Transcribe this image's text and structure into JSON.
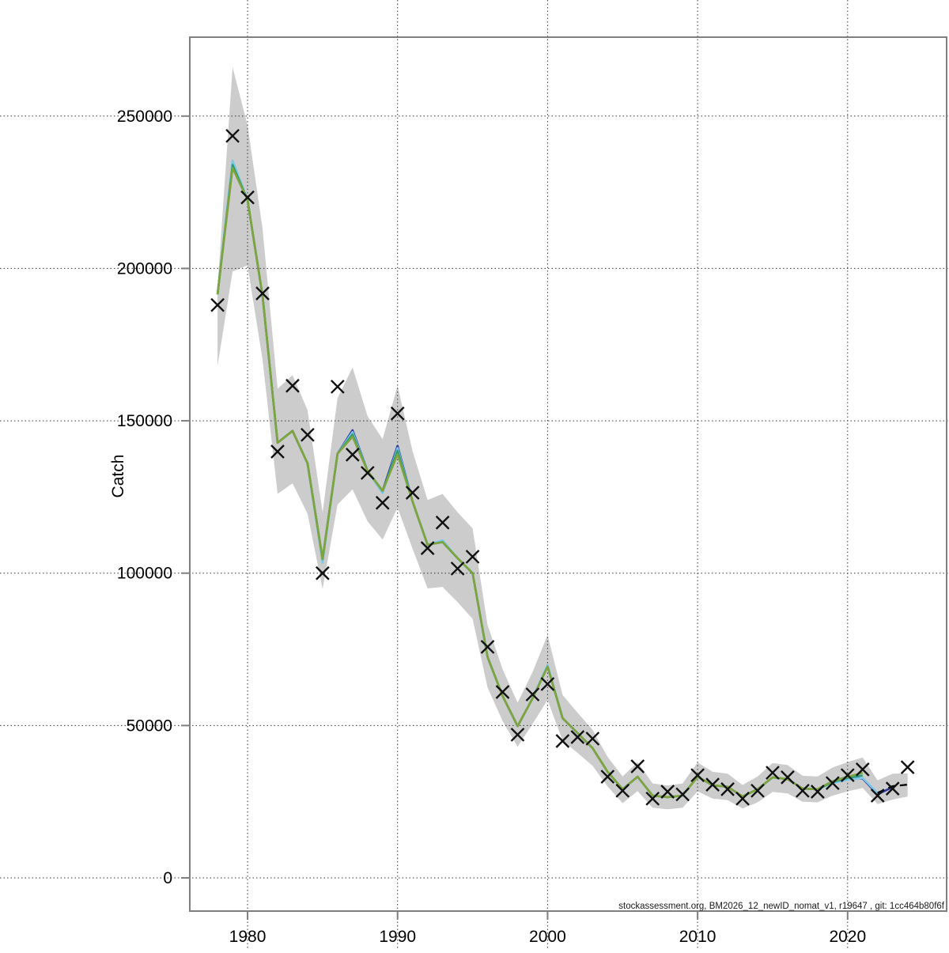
{
  "footer_note": "stockassessment.org, BM2026_12_newID_nomat_v1, r19647 , git: 1cc464b80f6f",
  "colors": {
    "background": "#ffffff",
    "plot_frame": "#7f7f7f",
    "gridline": "#333333",
    "band": "#cccccc",
    "run_green": "#7ea43b",
    "run_teal": "#2e9c74",
    "run_skyblue": "#7cc7e9",
    "run_navy": "#2d359b",
    "run_dashed": "#000000",
    "marks": "#111111",
    "text": "#000000"
  },
  "chart_data": {
    "type": "line",
    "title": "",
    "xlabel": "",
    "ylabel": "Catch",
    "legend": "none",
    "grid": "dotted, extends beyond plot box",
    "xlim": [
      1976.15,
      2026.6
    ],
    "ylim": [
      -10900,
      275900
    ],
    "x_tick_values": [
      1980,
      1990,
      2000,
      2010,
      2020
    ],
    "x_tick_labels": [
      "1980",
      "1990",
      "2000",
      "2010",
      "2020"
    ],
    "y_tick_values": [
      0,
      50000,
      100000,
      150000,
      200000,
      250000
    ],
    "y_tick_labels": [
      "0",
      "50000",
      "100000",
      "150000",
      "200000",
      "250000"
    ],
    "years_range": {
      "from": 1978,
      "to": 2024
    },
    "series": [
      {
        "name": "confidence-band",
        "type": "band",
        "color": "#cccccc",
        "year_start": 1978,
        "lo": [
          168000,
          199000,
          201000,
          170000,
          126000,
          129500,
          119500,
          94800,
          122500,
          127500,
          117000,
          111000,
          121500,
          108000,
          95000,
          95500,
          90500,
          85000,
          62500,
          51500,
          43000,
          50500,
          58400,
          45000,
          41000,
          36800,
          30000,
          24500,
          28500,
          23000,
          22500,
          23000,
          28400,
          26000,
          25500,
          22800,
          24800,
          28200,
          27700,
          25000,
          24800,
          27000,
          28400,
          29500,
          24200,
          25700,
          26700
        ],
        "hi": [
          194000,
          266000,
          247000,
          213000,
          160500,
          165000,
          153500,
          119900,
          157500,
          167500,
          151500,
          144000,
          161500,
          140000,
          124000,
          126000,
          120000,
          114700,
          83000,
          68500,
          57500,
          67500,
          79700,
          60000,
          54200,
          48600,
          39700,
          33300,
          38000,
          31000,
          30300,
          31000,
          37900,
          34800,
          34200,
          30500,
          33300,
          37700,
          37000,
          33500,
          33300,
          36200,
          38000,
          39500,
          32000,
          34200,
          34300
        ]
      },
      {
        "name": "run-fit-to-2023-navy",
        "type": "line",
        "style": "solid",
        "color": "#2d359b",
        "year_start": 1978,
        "values": [
          191500,
          234700,
          222500,
          191000,
          142800,
          146700,
          136000,
          104600,
          139200,
          146900,
          133500,
          127000,
          141800,
          123500,
          109300,
          110200,
          104900,
          100000,
          72500,
          59700,
          49800,
          58900,
          69600,
          52400,
          47500,
          42600,
          34800,
          29100,
          33200,
          27000,
          26500,
          27000,
          33200,
          30400,
          29900,
          26700,
          29100,
          33000,
          32400,
          29300,
          29100,
          31700,
          33200,
          32600,
          27400,
          29800
        ]
      },
      {
        "name": "run-fit-to-2022-skyblue",
        "type": "line",
        "style": "solid",
        "color": "#7cc7e9",
        "year_start": 1978,
        "values": [
          191500,
          235400,
          222500,
          191000,
          142800,
          146700,
          136000,
          103400,
          139200,
          146300,
          133500,
          126300,
          141100,
          123500,
          109300,
          110800,
          104900,
          100000,
          72500,
          59700,
          49800,
          58900,
          69900,
          52400,
          47500,
          42600,
          34800,
          29100,
          33200,
          27000,
          26500,
          27000,
          33200,
          30400,
          29900,
          26700,
          29100,
          33000,
          32400,
          29300,
          29100,
          31100,
          32200,
          32800,
          27800
        ]
      },
      {
        "name": "run-fit-to-2021-teal",
        "type": "line",
        "style": "solid",
        "color": "#2e9c74",
        "year_start": 1978,
        "values": [
          191500,
          234000,
          222500,
          191000,
          142800,
          146700,
          136000,
          104600,
          139200,
          145500,
          133500,
          127000,
          140200,
          123500,
          109300,
          110200,
          104900,
          100000,
          72500,
          59700,
          49800,
          58900,
          69300,
          52400,
          47500,
          42600,
          34800,
          29100,
          33200,
          27000,
          26500,
          27000,
          33200,
          30400,
          29900,
          26700,
          29100,
          33000,
          32400,
          29300,
          29100,
          31400,
          32800,
          33600
        ]
      },
      {
        "name": "run-fit-to-2021-green",
        "type": "line",
        "style": "solid",
        "color": "#7ea43b",
        "year_start": 1978,
        "values": [
          191500,
          233000,
          222500,
          191000,
          142800,
          146700,
          136000,
          104600,
          139200,
          144800,
          133500,
          127000,
          139000,
          123500,
          109300,
          110200,
          104900,
          100000,
          72500,
          59700,
          49800,
          58900,
          69300,
          52400,
          47500,
          42600,
          34800,
          29100,
          33200,
          27000,
          26500,
          27000,
          33200,
          30400,
          29900,
          26700,
          29100,
          33000,
          32400,
          29300,
          29100,
          31700,
          33200,
          34500
        ]
      },
      {
        "name": "current-run-forecast-dashed",
        "type": "line",
        "style": "dashed",
        "color": "#000000",
        "year_start": 2022,
        "values": [
          27900,
          30100,
          30600
        ]
      },
      {
        "name": "observed-catch-points",
        "type": "points",
        "marker": "x",
        "color": "#111111",
        "year_start": 1978,
        "values": [
          188000,
          243500,
          223300,
          191800,
          139900,
          161500,
          145400,
          100000,
          161200,
          138900,
          132900,
          123100,
          152400,
          126400,
          108200,
          116600,
          101500,
          105400,
          75800,
          61000,
          47000,
          60200,
          63600,
          44900,
          46200,
          45700,
          33200,
          28600,
          36600,
          26000,
          28300,
          27400,
          33700,
          30600,
          29100,
          26000,
          28600,
          34500,
          33000,
          28600,
          28300,
          31100,
          33700,
          35600,
          27000,
          29300,
          36300
        ]
      }
    ]
  }
}
